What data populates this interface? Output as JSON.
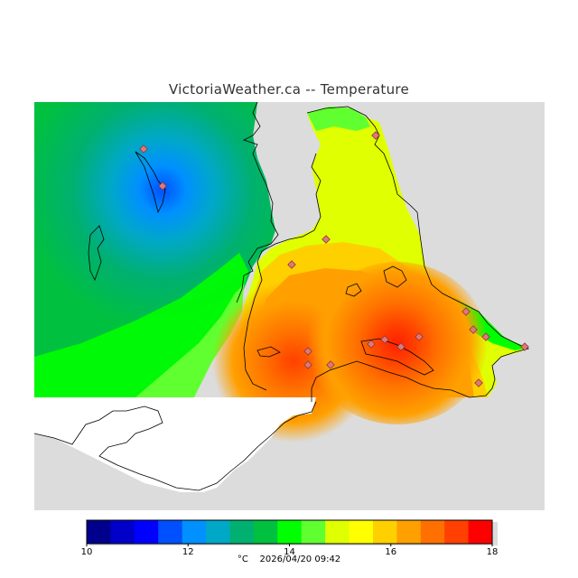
{
  "title": "VictoriaWeather.ca -- Temperature",
  "colors": {
    "water": "#dcdcdc",
    "white_land": "#ffffff",
    "outline": "#000000",
    "station": "#e07878"
  },
  "legend": {
    "min": 10,
    "max": 18,
    "ticks": [
      "10",
      "12",
      "14",
      "16",
      "18"
    ],
    "unit": "°C",
    "timestamp": "2026/04/20 09:42",
    "bands": [
      "#00008c",
      "#0000c8",
      "#0000ff",
      "#0050ff",
      "#0090ff",
      "#00a8c8",
      "#00b070",
      "#00c040",
      "#00ff00",
      "#60ff30",
      "#e0ff00",
      "#ffff00",
      "#ffd000",
      "#ffa000",
      "#ff7000",
      "#ff4000",
      "#ff0000"
    ]
  },
  "stations_count_label": ""
}
